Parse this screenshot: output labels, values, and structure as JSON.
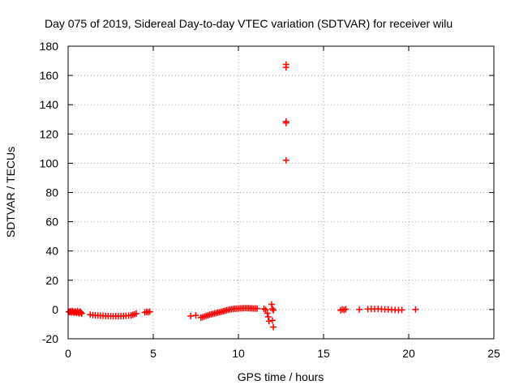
{
  "chart_data": {
    "type": "scatter",
    "title": "Day 075 of 2019, Sidereal Day-to-day VTEC variation (SDTVAR) for receiver wilu",
    "xlabel": "GPS time / hours",
    "ylabel": "SDTVAR / TECUs",
    "xlim": [
      0,
      25
    ],
    "ylim": [
      -20,
      180
    ],
    "xticks": [
      0,
      5,
      10,
      15,
      20,
      25
    ],
    "xtick_labels": [
      "0",
      "5",
      "10",
      "15",
      "20",
      "25"
    ],
    "yticks": [
      -20,
      0,
      20,
      40,
      60,
      80,
      100,
      120,
      140,
      160,
      180
    ],
    "ytick_labels": [
      "-20",
      "0",
      "20",
      "40",
      "60",
      "80",
      "100",
      "120",
      "140",
      "160",
      "180"
    ],
    "grid": true,
    "marker": "+",
    "series": [
      {
        "name": "SDTVAR",
        "color": "#ff0000",
        "points": [
          [
            0.05,
            -1.5
          ],
          [
            0.1,
            -1.8
          ],
          [
            0.15,
            -1.2
          ],
          [
            0.2,
            -2.0
          ],
          [
            0.25,
            -1.0
          ],
          [
            0.3,
            -1.6
          ],
          [
            0.35,
            -2.2
          ],
          [
            0.4,
            -1.3
          ],
          [
            0.45,
            -1.8
          ],
          [
            0.5,
            -2.4
          ],
          [
            0.55,
            -1.1
          ],
          [
            0.6,
            -1.9
          ],
          [
            0.65,
            -2.6
          ],
          [
            0.7,
            -1.5
          ],
          [
            0.75,
            -2.0
          ],
          [
            0.8,
            -2.8
          ],
          [
            1.3,
            -3.5
          ],
          [
            1.45,
            -3.8
          ],
          [
            1.6,
            -4.0
          ],
          [
            1.75,
            -4.1
          ],
          [
            1.9,
            -4.2
          ],
          [
            2.05,
            -4.3
          ],
          [
            2.2,
            -4.4
          ],
          [
            2.35,
            -4.5
          ],
          [
            2.5,
            -4.5
          ],
          [
            2.65,
            -4.6
          ],
          [
            2.8,
            -4.5
          ],
          [
            2.95,
            -4.6
          ],
          [
            3.1,
            -4.5
          ],
          [
            3.25,
            -4.4
          ],
          [
            3.4,
            -4.3
          ],
          [
            3.55,
            -4.2
          ],
          [
            3.7,
            -4.0
          ],
          [
            3.8,
            -3.6
          ],
          [
            3.9,
            -3.2
          ],
          [
            4.0,
            -2.8
          ],
          [
            4.5,
            -2.0
          ],
          [
            4.6,
            -1.6
          ],
          [
            4.7,
            -1.8
          ],
          [
            4.8,
            -1.5
          ],
          [
            7.2,
            -4.5
          ],
          [
            7.5,
            -4.0
          ],
          [
            7.8,
            -5.5
          ],
          [
            7.9,
            -5.2
          ],
          [
            8.0,
            -4.8
          ],
          [
            8.1,
            -4.4
          ],
          [
            8.2,
            -4.0
          ],
          [
            8.3,
            -3.6
          ],
          [
            8.4,
            -3.3
          ],
          [
            8.5,
            -3.0
          ],
          [
            8.6,
            -2.7
          ],
          [
            8.7,
            -2.4
          ],
          [
            8.8,
            -2.1
          ],
          [
            8.9,
            -1.8
          ],
          [
            9.0,
            -1.5
          ],
          [
            9.1,
            -1.2
          ],
          [
            9.2,
            -0.9
          ],
          [
            9.3,
            -0.6
          ],
          [
            9.4,
            -0.3
          ],
          [
            9.5,
            0.0
          ],
          [
            9.6,
            0.2
          ],
          [
            9.7,
            0.4
          ],
          [
            9.8,
            0.5
          ],
          [
            9.9,
            0.6
          ],
          [
            10.0,
            0.7
          ],
          [
            10.1,
            0.8
          ],
          [
            10.2,
            0.8
          ],
          [
            10.3,
            0.9
          ],
          [
            10.4,
            0.9
          ],
          [
            10.5,
            0.9
          ],
          [
            10.6,
            0.9
          ],
          [
            10.7,
            0.8
          ],
          [
            10.8,
            0.8
          ],
          [
            10.9,
            0.7
          ],
          [
            11.0,
            0.7
          ],
          [
            11.1,
            0.6
          ],
          [
            11.5,
            0.5
          ],
          [
            11.6,
            -0.2
          ],
          [
            11.7,
            -2.5
          ],
          [
            11.75,
            -5.0
          ],
          [
            11.8,
            -8.0
          ],
          [
            12.0,
            -7.5
          ],
          [
            12.05,
            -12.0
          ],
          [
            11.95,
            3.5
          ],
          [
            12.0,
            0.5
          ],
          [
            12.05,
            -0.5
          ],
          [
            12.8,
            102.0
          ],
          [
            12.8,
            127.5
          ],
          [
            12.8,
            128.5
          ],
          [
            12.8,
            165.5
          ],
          [
            12.8,
            167.5
          ],
          [
            16.0,
            -0.5
          ],
          [
            16.1,
            0.0
          ],
          [
            16.2,
            -0.3
          ],
          [
            16.3,
            0.2
          ],
          [
            17.1,
            0.0
          ],
          [
            17.6,
            0.3
          ],
          [
            17.8,
            0.4
          ],
          [
            18.0,
            0.3
          ],
          [
            18.2,
            0.4
          ],
          [
            18.4,
            0.2
          ],
          [
            18.6,
            0.1
          ],
          [
            18.8,
            0.0
          ],
          [
            19.0,
            -0.2
          ],
          [
            19.2,
            -0.3
          ],
          [
            19.4,
            -0.4
          ],
          [
            19.6,
            -0.3
          ],
          [
            20.4,
            0.0
          ]
        ]
      }
    ]
  }
}
